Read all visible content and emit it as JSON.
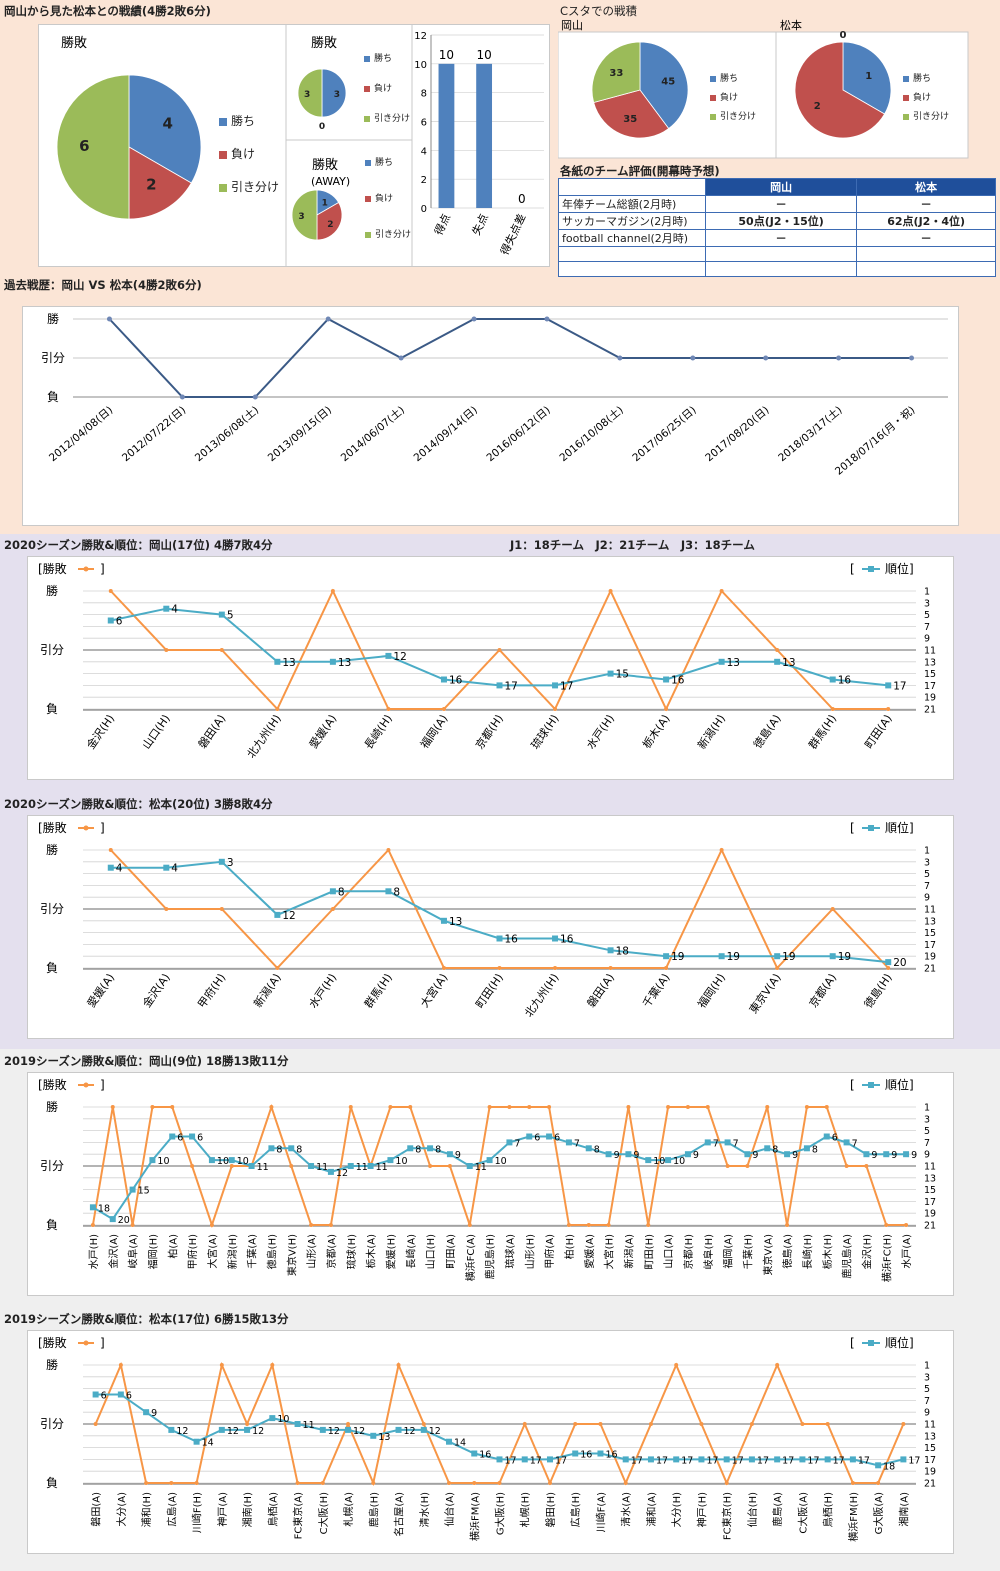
{
  "colors": {
    "win": "#4f81bd",
    "lose": "#c0504d",
    "draw": "#9bbb59",
    "rank": "#4bacc6",
    "result": "#f79646",
    "history": "#3b5a86",
    "bar": "#4f81bd"
  },
  "top_title": "岡山から見た松本との戦績(4勝2敗6分)",
  "cstadium_title": "Cスタでの戦積",
  "evaluation": {
    "title": "各紙のチーム評価(開幕時予想)",
    "headers": [
      "",
      "岡山",
      "松本"
    ],
    "rows": [
      [
        "年俸チーム総額(2月時)",
        "－",
        "－"
      ],
      [
        "サッカーマガジン(2月時)",
        "50点(J2・15位)",
        "62点(J2・4位)"
      ],
      [
        "football channel(2月時)",
        "－",
        "－"
      ],
      [
        "",
        "",
        ""
      ],
      [
        "",
        "",
        ""
      ]
    ]
  },
  "history_title": "過去戦歴：岡山 VS 松本(4勝2敗6分)",
  "s2020_okayama_title": "2020シーズン勝敗&順位：岡山(17位) 4勝7敗4分",
  "league_note": "J1：18チーム　J2：21チーム　J3：18チーム",
  "s2020_matsumoto_title": "2020シーズン勝敗&順位：松本(20位) 3勝8敗4分",
  "s2019_okayama_title": "2019シーズン勝敗&順位：岡山(9位) 18勝13敗11分",
  "s2019_matsumoto_title": "2019シーズン勝敗&順位：松本(17位) 6勝15敗13分",
  "chart_data": [
    {
      "id": "pie-all",
      "type": "pie",
      "title": "勝敗",
      "labels": [
        "勝ち",
        "負け",
        "引き分け"
      ],
      "values": [
        4,
        2,
        6
      ]
    },
    {
      "id": "pie-home",
      "type": "pie",
      "title": "勝敗",
      "labels": [
        "勝ち",
        "負け",
        "引き分け"
      ],
      "values": [
        3,
        0,
        3
      ]
    },
    {
      "id": "pie-away",
      "type": "pie",
      "title": "勝敗\n(AWAY)",
      "labels": [
        "勝ち",
        "負け",
        "引き分け"
      ],
      "values": [
        1,
        2,
        3
      ]
    },
    {
      "id": "bar-goals",
      "type": "bar",
      "categories": [
        "得点",
        "失点",
        "得失点差"
      ],
      "values": [
        10,
        10,
        0
      ],
      "ylim": [
        0,
        12
      ],
      "yticks": [
        0,
        2,
        4,
        6,
        8,
        10,
        12
      ]
    },
    {
      "id": "pie-cs-okayama",
      "type": "pie",
      "title": "岡山",
      "labels": [
        "勝ち",
        "負け",
        "引き分け"
      ],
      "values": [
        45,
        35,
        33
      ]
    },
    {
      "id": "pie-cs-matsumoto",
      "type": "pie",
      "title": "松本",
      "labels": [
        "勝ち",
        "負け",
        "引き分け"
      ],
      "values": [
        1,
        2,
        0
      ]
    },
    {
      "id": "history",
      "type": "line",
      "y_labels": [
        "負",
        "引分",
        "勝"
      ],
      "x": [
        "2012/04/08(日)",
        "2012/07/22(日)",
        "2013/06/08(土)",
        "2013/09/15(日)",
        "2014/06/07(土)",
        "2014/09/14(日)",
        "2016/06/12(日)",
        "2016/10/08(土)",
        "2017/06/25(日)",
        "2017/08/20(日)",
        "2018/03/17(土)",
        "2018/07/16(月・祝)"
      ],
      "results": [
        2,
        0,
        0,
        2,
        1,
        2,
        2,
        1,
        1,
        1,
        1,
        1
      ]
    },
    {
      "id": "s2020-okayama",
      "type": "line",
      "legend_left": "[勝敗",
      "legend_right": "[　順位]",
      "result_labels": [
        "負",
        "引分",
        "勝"
      ],
      "categories": [
        "金沢(H)",
        "山口(H)",
        "磐田(A)",
        "北九州(H)",
        "愛媛(A)",
        "長崎(H)",
        "福岡(A)",
        "京都(H)",
        "琉球(H)",
        "水戸(H)",
        "栃木(A)",
        "新潟(H)",
        "徳島(A)",
        "群馬(H)",
        "町田(A)"
      ],
      "results": [
        2,
        1,
        1,
        0,
        2,
        0,
        0,
        1,
        0,
        2,
        0,
        2,
        1,
        0,
        0
      ],
      "ranks": [
        6,
        4,
        5,
        13,
        13,
        12,
        16,
        17,
        17,
        15,
        16,
        13,
        13,
        16,
        17
      ]
    },
    {
      "id": "s2020-matsumoto",
      "type": "line",
      "legend_left": "[勝敗",
      "legend_right": "[　順位]",
      "result_labels": [
        "負",
        "引分",
        "勝"
      ],
      "categories": [
        "愛媛(A)",
        "金沢(A)",
        "甲府(H)",
        "新潟(A)",
        "水戸(H)",
        "群馬(H)",
        "大宮(A)",
        "町田(H)",
        "北九州(H)",
        "磐田(A)",
        "千葉(A)",
        "福岡(H)",
        "東京V(A)",
        "京都(A)",
        "徳島(H)"
      ],
      "results": [
        2,
        1,
        1,
        0,
        1,
        2,
        0,
        0,
        0,
        0,
        0,
        2,
        0,
        1,
        0
      ],
      "ranks": [
        4,
        4,
        3,
        12,
        8,
        8,
        13,
        16,
        16,
        18,
        19,
        19,
        19,
        19,
        20
      ]
    },
    {
      "id": "s2019-okayama",
      "type": "line",
      "legend_left": "[勝敗",
      "legend_right": "[　順位]",
      "result_labels": [
        "負",
        "引分",
        "勝"
      ],
      "categories": [
        "水戸(H)",
        "金沢(A)",
        "岐阜(A)",
        "福岡(H)",
        "柏(A)",
        "甲府(H)",
        "大宮(A)",
        "新潟(H)",
        "千葉(A)",
        "徳島(H)",
        "東京V(H)",
        "山形(A)",
        "京都(A)",
        "琉球(H)",
        "栃木(A)",
        "愛媛(H)",
        "長崎(A)",
        "山口(H)",
        "町田(A)",
        "横浜FC(A)",
        "鹿児島(H)",
        "琉球(A)",
        "山形(H)",
        "甲府(A)",
        "柏(H)",
        "愛媛(A)",
        "大宮(H)",
        "新潟(A)",
        "町田(H)",
        "山口(A)",
        "京都(H)",
        "岐阜(H)",
        "福岡(A)",
        "千葉(H)",
        "東京V(A)",
        "徳島(A)",
        "長崎(H)",
        "栃木(H)",
        "鹿児島(A)",
        "金沢(H)",
        "横浜FC(H)",
        "水戸(A)"
      ],
      "results": [
        0,
        2,
        0,
        2,
        2,
        1,
        0,
        1,
        1,
        2,
        1,
        0,
        0,
        2,
        1,
        2,
        2,
        1,
        1,
        0,
        2,
        2,
        2,
        2,
        0,
        0,
        0,
        2,
        0,
        2,
        2,
        2,
        1,
        1,
        2,
        0,
        2,
        2,
        1,
        1,
        0,
        0
      ],
      "ranks": [
        18,
        20,
        15,
        10,
        6,
        6,
        10,
        10,
        11,
        8,
        8,
        11,
        12,
        11,
        11,
        10,
        8,
        8,
        9,
        11,
        10,
        7,
        6,
        6,
        7,
        8,
        9,
        9,
        10,
        10,
        9,
        7,
        7,
        9,
        8,
        9,
        8,
        6,
        7,
        9,
        9,
        9
      ]
    },
    {
      "id": "s2019-matsumoto",
      "type": "line",
      "legend_left": "[勝敗",
      "legend_right": "[　順位]",
      "result_labels": [
        "負",
        "引分",
        "勝"
      ],
      "categories": [
        "磐田(A)",
        "大分(A)",
        "浦和(H)",
        "広島(A)",
        "川崎F(H)",
        "神戸(A)",
        "湘南(H)",
        "鳥栖(A)",
        "FC東京(A)",
        "C大阪(H)",
        "札幌(A)",
        "鹿島(H)",
        "名古屋(A)",
        "清水(H)",
        "仙台(A)",
        "横浜FM(A)",
        "G大阪(H)",
        "札幌(H)",
        "磐田(H)",
        "広島(H)",
        "川崎F(A)",
        "清水(A)",
        "浦和(A)",
        "大分(H)",
        "神戸(H)",
        "FC東京(H)",
        "仙台(H)",
        "鹿島(A)",
        "C大阪(A)",
        "鳥栖(H)",
        "横浜FM(H)",
        "G大阪(A)",
        "湘南(A)"
      ],
      "results": [
        1,
        2,
        0,
        0,
        0,
        2,
        1,
        2,
        0,
        0,
        1,
        0,
        2,
        1,
        0,
        0,
        0,
        1,
        0,
        1,
        1,
        0,
        1,
        2,
        1,
        0,
        1,
        2,
        1,
        1,
        0,
        0,
        1
      ],
      "ranks": [
        6,
        6,
        9,
        12,
        14,
        12,
        12,
        10,
        11,
        12,
        12,
        13,
        12,
        12,
        14,
        16,
        17,
        17,
        17,
        16,
        16,
        17,
        17,
        17,
        17,
        17,
        17,
        17,
        17,
        17,
        17,
        18,
        17
      ]
    }
  ]
}
